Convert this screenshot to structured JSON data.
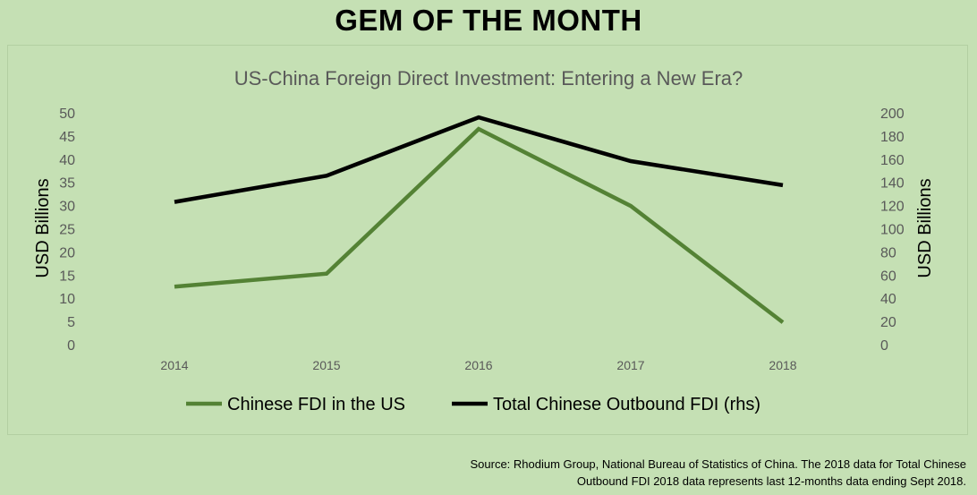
{
  "page": {
    "banner": "GEM OF THE MONTH",
    "source_line1": "Source: Rhodium Group, National Bureau of Statistics of China. The 2018 data for Total Chinese",
    "source_line2": "Outbound FDI 2018 data represents last 12-months data ending Sept 2018."
  },
  "chart_data": {
    "type": "line",
    "title": "US-China Foreign Direct Investment: Entering a New Era?",
    "xlabel": "",
    "ylabel_left": "USD Billions",
    "ylabel_right": "USD Billions",
    "categories": [
      "2014",
      "2015",
      "2016",
      "2017",
      "2018"
    ],
    "ylim_left": [
      0,
      50
    ],
    "yticks_left": [
      0,
      5,
      10,
      15,
      20,
      25,
      30,
      35,
      40,
      45,
      50
    ],
    "ylim_right": [
      0,
      200
    ],
    "yticks_right": [
      0,
      20,
      40,
      60,
      80,
      100,
      120,
      140,
      160,
      180,
      200
    ],
    "grid": false,
    "legend_position": "bottom",
    "series": [
      {
        "name": "Chinese FDI in the US",
        "axis": "left",
        "color": "#548235",
        "values": [
          12.5,
          15.3,
          46.5,
          29.9,
          4.8
        ]
      },
      {
        "name": "Total Chinese Outbound FDI (rhs)",
        "axis": "right",
        "color": "#000000",
        "values": [
          123.1,
          145.7,
          196.1,
          158.3,
          137.5
        ]
      }
    ]
  }
}
